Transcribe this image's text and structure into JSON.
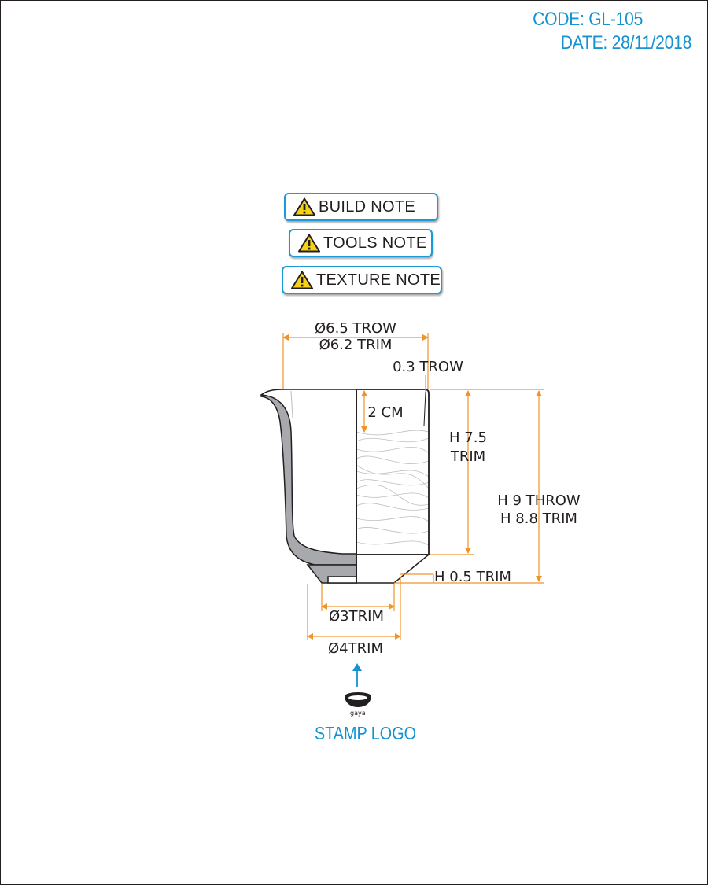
{
  "header": {
    "code": "CODE: GL-105",
    "date": "DATE: 28/11/2018"
  },
  "notes": [
    {
      "label": "BUILD NOTE",
      "icon": "warning-icon"
    },
    {
      "label": "TOOLS NOTE",
      "icon": "warning-icon"
    },
    {
      "label": "TEXTURE NOTE",
      "icon": "warning-icon"
    }
  ],
  "dimensions": {
    "top_diameter_throw": "Ø6.5 TROW",
    "top_diameter_trim": "Ø6.2 TRIM",
    "wall_thickness": "0.3 TROW",
    "rim_band": "2 CM",
    "height_trim_line1": "H 7.5",
    "height_trim_line2": "TRIM",
    "height_throw": "H 9 THROW",
    "height_trim_total": "H 8.8 TRIM",
    "foot_height": "H 0.5 TRIM",
    "foot_inner": "Ø3TRIM",
    "foot_outer": "Ø4TRIM"
  },
  "stamp": {
    "logo_text": "gaya",
    "caption": "STAMP LOGO"
  },
  "colors": {
    "accent_blue": "#1493d0",
    "dimension_orange": "#f0942a",
    "outline": "#231f20",
    "wall_gray": "#a7a9ac",
    "warning_yellow": "#f7d117"
  }
}
